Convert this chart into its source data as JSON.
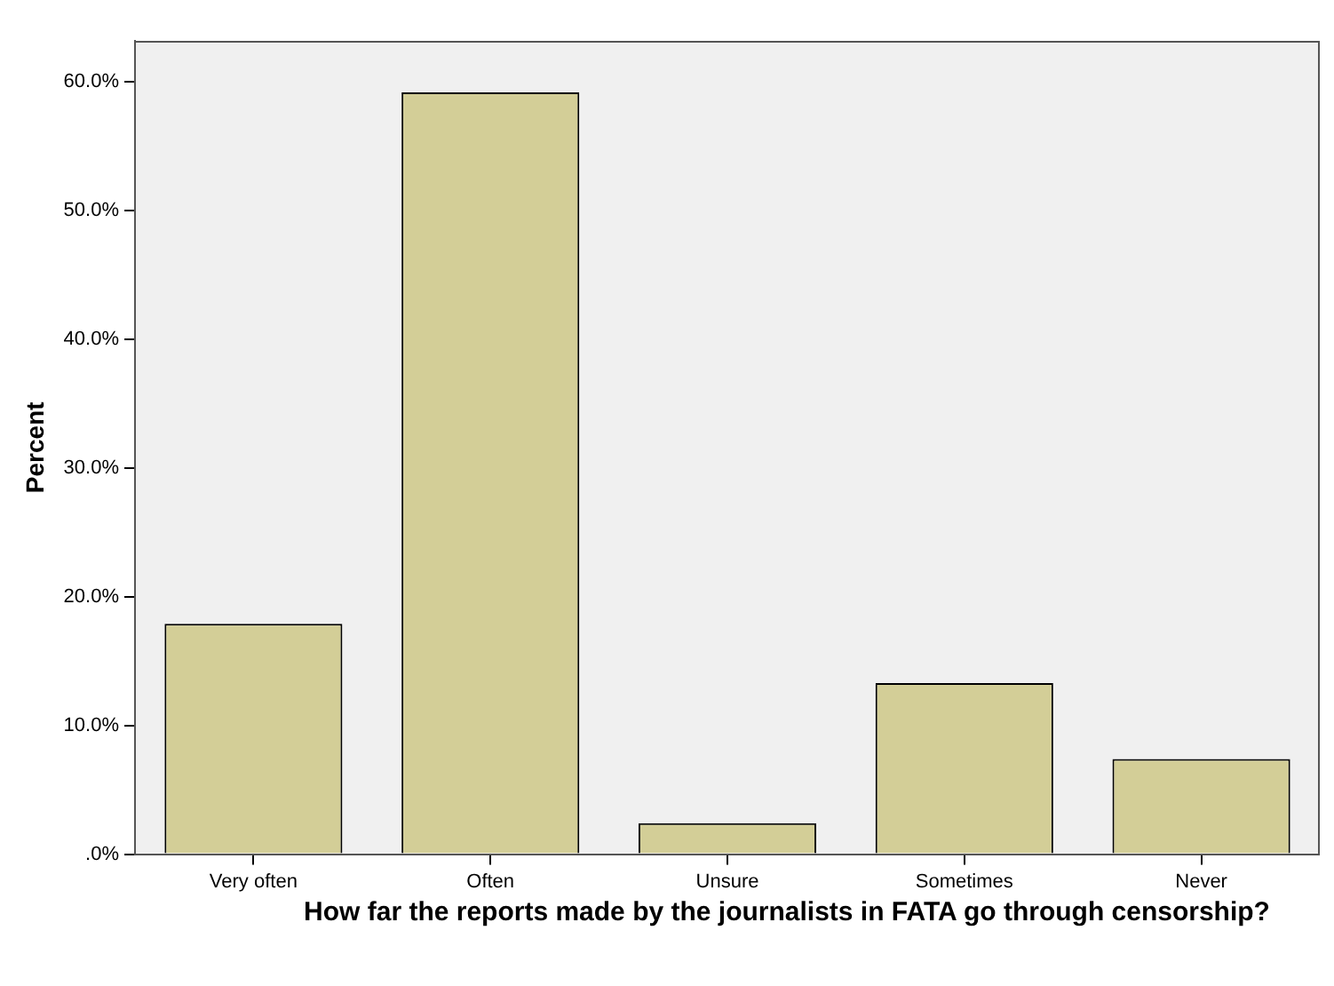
{
  "chart_data": {
    "type": "bar",
    "xlabel": "How far the reports made by the journalists in FATA go through censorship?",
    "ylabel": "Percent",
    "categories": [
      "Very often",
      "Often",
      "Unsure",
      "Sometimes",
      "Never"
    ],
    "values": [
      17.9,
      59.2,
      2.4,
      13.3,
      7.4
    ],
    "color": "#d3ce97",
    "ylim": [
      0,
      63.2
    ],
    "yticks": [
      {
        "value": 0,
        "label": ".0%"
      },
      {
        "value": 10,
        "label": "10.0%"
      },
      {
        "value": 20,
        "label": "20.0%"
      },
      {
        "value": 30,
        "label": "30.0%"
      },
      {
        "value": 40,
        "label": "40.0%"
      },
      {
        "value": 50,
        "label": "50.0%"
      },
      {
        "value": 60,
        "label": "60.0%"
      }
    ]
  }
}
